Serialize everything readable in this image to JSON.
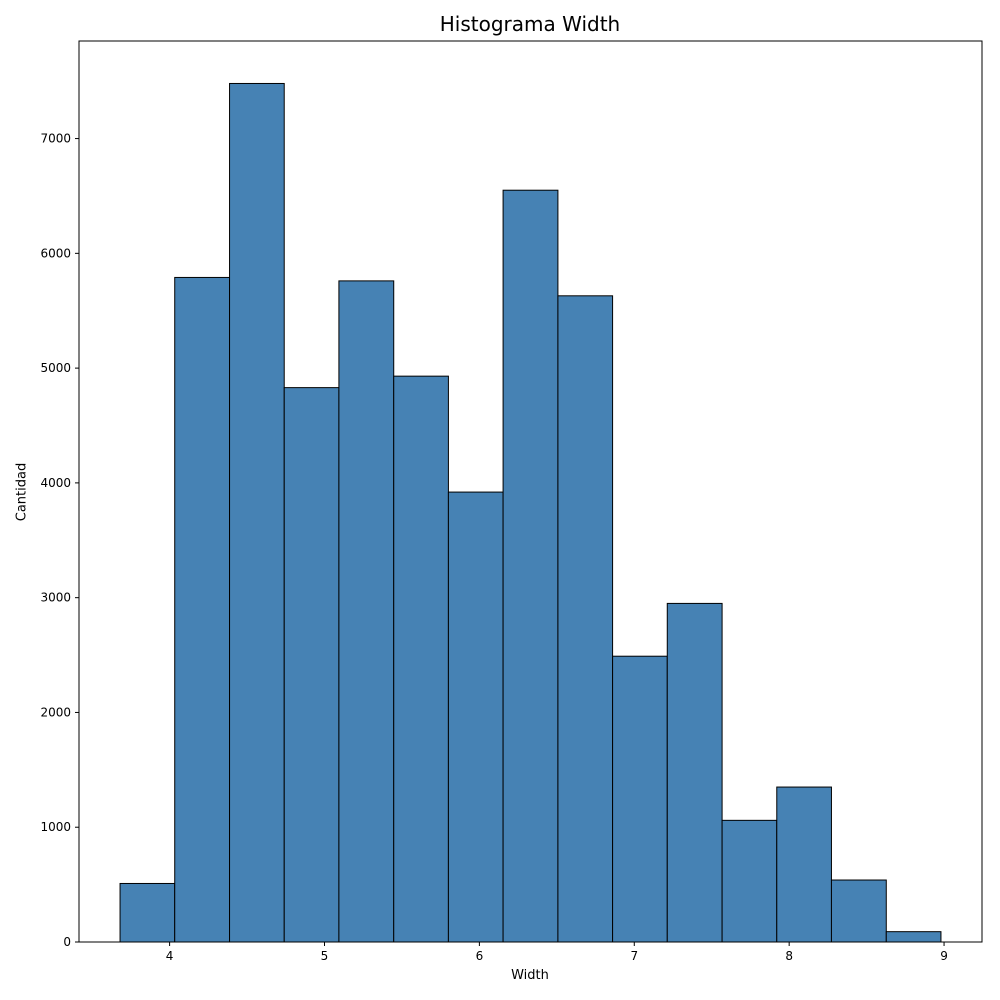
{
  "chart_data": {
    "type": "bar",
    "title": "Histograma Width",
    "xlabel": "Width",
    "ylabel": "Cantidad",
    "bin_edges": [
      3.68,
      4.033,
      4.387,
      4.74,
      5.093,
      5.447,
      5.8,
      6.153,
      6.507,
      6.86,
      7.213,
      7.567,
      7.92,
      8.273,
      8.627,
      8.98
    ],
    "values": [
      510,
      5790,
      7480,
      4830,
      5760,
      4930,
      3920,
      6550,
      5630,
      2490,
      2950,
      1060,
      1350,
      540,
      90
    ],
    "xlim": [
      3.415,
      9.245
    ],
    "ylim": [
      0,
      7850
    ],
    "xticks": [
      "4",
      "5",
      "6",
      "7",
      "8",
      "9"
    ],
    "yticks": [
      "0",
      "1000",
      "2000",
      "3000",
      "4000",
      "5000",
      "6000",
      "7000"
    ],
    "bar_color": "#4682b4",
    "edge_color": "#000000",
    "grid": false
  }
}
